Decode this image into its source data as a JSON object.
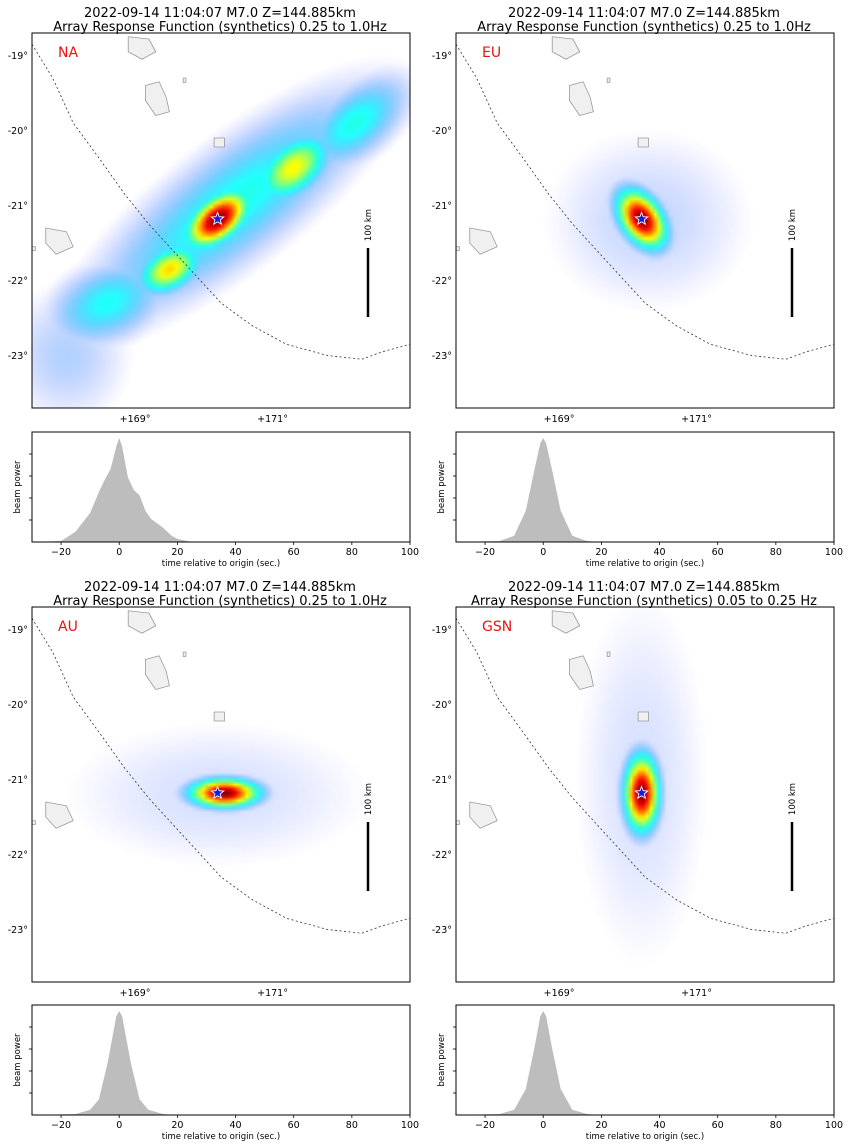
{
  "chart_data": [
    {
      "type": "heatmap",
      "title": "2022-09-14 11:04:07 M7.0 Z=144.885km",
      "subtitle": "Array Response Function (synthetics) 0.25 to 1.0Hz",
      "network": "NA",
      "colormap": "jet, transparent at low power",
      "grid": false,
      "lat_ticks": [
        "-19°",
        "-20°",
        "-21°",
        "-22°",
        "-23°"
      ],
      "lat_values": [
        -19,
        -20,
        -21,
        -22,
        -23
      ],
      "lon_ticks": [
        "+169°",
        "+171°"
      ],
      "lon_values": [
        169,
        171
      ],
      "xlim": [
        167.5,
        173.0
      ],
      "ylim": [
        -23.7,
        -18.7
      ],
      "event": {
        "lon": 170.2,
        "lat": -21.18,
        "marker": "star"
      },
      "scale_bar_label": "100 km",
      "peaks": [
        {
          "lon": 170.2,
          "lat": -21.18,
          "power": 1.0,
          "sx": 0.33,
          "sy": 0.18,
          "angle_deg": 35
        },
        {
          "lon": 171.3,
          "lat": -20.5,
          "power": 0.58,
          "sx": 0.38,
          "sy": 0.22,
          "angle_deg": 35
        },
        {
          "lon": 169.5,
          "lat": -21.85,
          "power": 0.62,
          "sx": 0.3,
          "sy": 0.18,
          "angle_deg": 25
        },
        {
          "lon": 172.2,
          "lat": -19.9,
          "power": 0.32,
          "sx": 0.55,
          "sy": 0.28,
          "angle_deg": 35
        },
        {
          "lon": 168.6,
          "lat": -22.3,
          "power": 0.3,
          "sx": 0.55,
          "sy": 0.32,
          "angle_deg": 20
        },
        {
          "lon": 170.4,
          "lat": -21.0,
          "power": 0.32,
          "sx": 1.5,
          "sy": 0.45,
          "angle_deg": 35
        },
        {
          "lon": 168.0,
          "lat": -23.0,
          "power": 0.12,
          "sx": 0.6,
          "sy": 0.6,
          "angle_deg": 0
        }
      ],
      "beam": {
        "xlabel": "time relative to origin (sec.)",
        "ylabel": "beam power",
        "xlim": [
          -30,
          100
        ],
        "xticks": [
          -20,
          0,
          20,
          40,
          60,
          80,
          100
        ],
        "t": [
          -30,
          -20,
          -15,
          -10,
          -7,
          -5,
          -3,
          -1,
          0,
          1,
          3,
          5,
          7,
          9,
          11,
          13,
          15,
          18,
          20,
          25,
          30,
          100
        ],
        "power": [
          0,
          0.01,
          0.1,
          0.28,
          0.48,
          0.6,
          0.7,
          0.92,
          1.0,
          0.92,
          0.62,
          0.5,
          0.45,
          0.3,
          0.22,
          0.18,
          0.14,
          0.06,
          0.03,
          0.0,
          0,
          0
        ]
      }
    },
    {
      "type": "heatmap",
      "title": "2022-09-14 11:04:07 M7.0 Z=144.885km",
      "subtitle": "Array Response Function (synthetics) 0.25 to 1.0Hz",
      "network": "EU",
      "colormap": "jet, transparent at low power",
      "grid": false,
      "lat_ticks": [
        "-19°",
        "-20°",
        "-21°",
        "-22°",
        "-23°"
      ],
      "lat_values": [
        -19,
        -20,
        -21,
        -22,
        -23
      ],
      "lon_ticks": [
        "+169°",
        "+171°"
      ],
      "lon_values": [
        169,
        171
      ],
      "xlim": [
        167.5,
        173.0
      ],
      "ylim": [
        -23.7,
        -18.7
      ],
      "event": {
        "lon": 170.2,
        "lat": -21.18,
        "marker": "star"
      },
      "scale_bar_label": "100 km",
      "peaks": [
        {
          "lon": 170.2,
          "lat": -21.18,
          "power": 1.0,
          "sx": 0.28,
          "sy": 0.18,
          "angle_deg": -50
        },
        {
          "lon": 170.3,
          "lat": -21.2,
          "power": 0.1,
          "sx": 1.0,
          "sy": 0.8,
          "angle_deg": 0
        }
      ],
      "beam": {
        "xlabel": "time relative to origin (sec.)",
        "ylabel": "beam power",
        "xlim": [
          -30,
          100
        ],
        "xticks": [
          -20,
          0,
          20,
          40,
          60,
          80,
          100
        ],
        "t": [
          -30,
          -15,
          -10,
          -6,
          -3,
          -1,
          0,
          1,
          3,
          6,
          10,
          15,
          20,
          100
        ],
        "power": [
          0,
          0.01,
          0.06,
          0.3,
          0.7,
          0.95,
          1.0,
          0.95,
          0.7,
          0.3,
          0.06,
          0.01,
          0,
          0
        ]
      }
    },
    {
      "type": "heatmap",
      "title": "2022-09-14 11:04:07 M7.0 Z=144.885km",
      "subtitle": "Array Response Function (synthetics) 0.25 to 1.0Hz",
      "network": "AU",
      "colormap": "jet, transparent at low power",
      "grid": false,
      "lat_ticks": [
        "-19°",
        "-20°",
        "-21°",
        "-22°",
        "-23°"
      ],
      "lat_values": [
        -19,
        -20,
        -21,
        -22,
        -23
      ],
      "lon_ticks": [
        "+169°",
        "+171°"
      ],
      "lon_values": [
        169,
        171
      ],
      "xlim": [
        167.5,
        173.0
      ],
      "ylim": [
        -23.7,
        -18.7
      ],
      "event": {
        "lon": 170.2,
        "lat": -21.18,
        "marker": "star"
      },
      "scale_bar_label": "100 km",
      "peaks": [
        {
          "lon": 170.3,
          "lat": -21.18,
          "power": 1.0,
          "sx": 0.32,
          "sy": 0.12,
          "angle_deg": 0
        },
        {
          "lon": 170.2,
          "lat": -21.2,
          "power": 0.08,
          "sx": 1.6,
          "sy": 0.7,
          "angle_deg": 0
        }
      ],
      "beam": {
        "xlabel": "time relative to origin (sec.)",
        "ylabel": "beam power",
        "xlim": [
          -30,
          100
        ],
        "xticks": [
          -20,
          0,
          20,
          40,
          60,
          80,
          100
        ],
        "t": [
          -30,
          -15,
          -10,
          -7,
          -4,
          -1,
          0,
          1,
          4,
          7,
          10,
          15,
          20,
          100
        ],
        "power": [
          0,
          0.01,
          0.05,
          0.15,
          0.5,
          0.95,
          1.0,
          0.95,
          0.5,
          0.15,
          0.05,
          0.01,
          0,
          0
        ]
      }
    },
    {
      "type": "heatmap",
      "title": "2022-09-14 11:04:07 M7.0 Z=144.885km",
      "subtitle": "Array Response Function (synthetics) 0.05 to 0.25 Hz",
      "network": "GSN",
      "colormap": "jet, transparent at low power",
      "grid": false,
      "lat_ticks": [
        "-19°",
        "-20°",
        "-21°",
        "-22°",
        "-23°"
      ],
      "lat_values": [
        -19,
        -20,
        -21,
        -22,
        -23
      ],
      "lon_ticks": [
        "+169°",
        "+171°"
      ],
      "lon_values": [
        169,
        171
      ],
      "xlim": [
        167.5,
        173.0
      ],
      "ylim": [
        -23.7,
        -18.7
      ],
      "event": {
        "lon": 170.2,
        "lat": -21.18,
        "marker": "star"
      },
      "scale_bar_label": "100 km",
      "peaks": [
        {
          "lon": 170.2,
          "lat": -21.18,
          "power": 1.0,
          "sx": 0.16,
          "sy": 0.32,
          "angle_deg": 0
        },
        {
          "lon": 170.2,
          "lat": -21.0,
          "power": 0.08,
          "sx": 0.7,
          "sy": 1.8,
          "angle_deg": 0
        }
      ],
      "beam": {
        "xlabel": "time relative to origin (sec.)",
        "ylabel": "beam power",
        "xlim": [
          -30,
          100
        ],
        "xticks": [
          -20,
          0,
          20,
          40,
          60,
          80,
          100
        ],
        "t": [
          -30,
          -15,
          -10,
          -6,
          -3,
          -1,
          0,
          1,
          3,
          6,
          10,
          15,
          20,
          100
        ],
        "power": [
          0,
          0.01,
          0.05,
          0.25,
          0.65,
          0.95,
          1.0,
          0.95,
          0.65,
          0.25,
          0.05,
          0.01,
          0,
          0
        ]
      }
    }
  ],
  "colors": {
    "network_label": "#ee1111",
    "beam_fill": "#bdbdbd",
    "land": "#f0f0f0",
    "land_edge": "#9a9a9a",
    "trench": "#333333",
    "star": "#1a1ad8"
  }
}
